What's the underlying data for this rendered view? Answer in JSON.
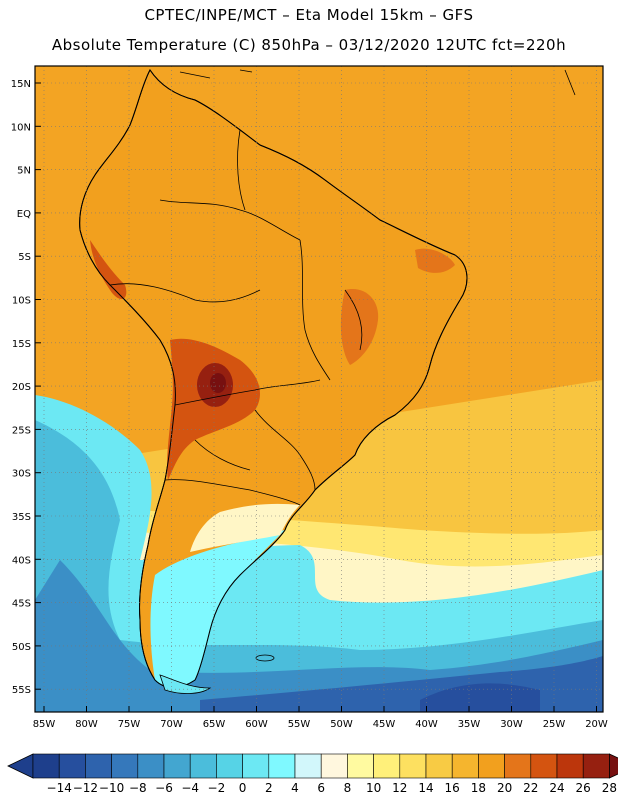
{
  "header": {
    "line1": "CPTEC/INPE/MCT –   Eta Model 15km – GFS",
    "line2": "Absolute Temperature (C) 850hPa – 03/12/2020 12UTC fct=220h"
  },
  "map": {
    "lat_labels": [
      "15N",
      "10N",
      "5N",
      "EQ",
      "5S",
      "10S",
      "15S",
      "20S",
      "25S",
      "30S",
      "35S",
      "40S",
      "45S",
      "50S",
      "55S"
    ],
    "lon_labels": [
      "85W",
      "80W",
      "75W",
      "70W",
      "65W",
      "60W",
      "55W",
      "50W",
      "45W",
      "40W",
      "35W",
      "30W",
      "25W",
      "20W"
    ],
    "grid_lines": "dotted"
  },
  "colorbar": {
    "labels": [
      "-14",
      "-12",
      "-10",
      "-8",
      "-6",
      "-4",
      "-2",
      "0",
      "2",
      "4",
      "6",
      "8",
      "10",
      "12",
      "14",
      "16",
      "18",
      "20",
      "22",
      "24",
      "26",
      "28"
    ],
    "colors": [
      "#1e3f8c",
      "#264f9e",
      "#2e63ad",
      "#3578bb",
      "#3b8fc6",
      "#43a6d0",
      "#4bbddb",
      "#56d3e6",
      "#6ce8f3",
      "#7ff9ff",
      "#d2f7fb",
      "#fff7de",
      "#fffaa0",
      "#fff07a",
      "#fde060",
      "#f8cb44",
      "#f5b52e",
      "#f2a01e",
      "#e4751a",
      "#d45410",
      "#bc360c",
      "#962010",
      "#771010"
    ]
  }
}
